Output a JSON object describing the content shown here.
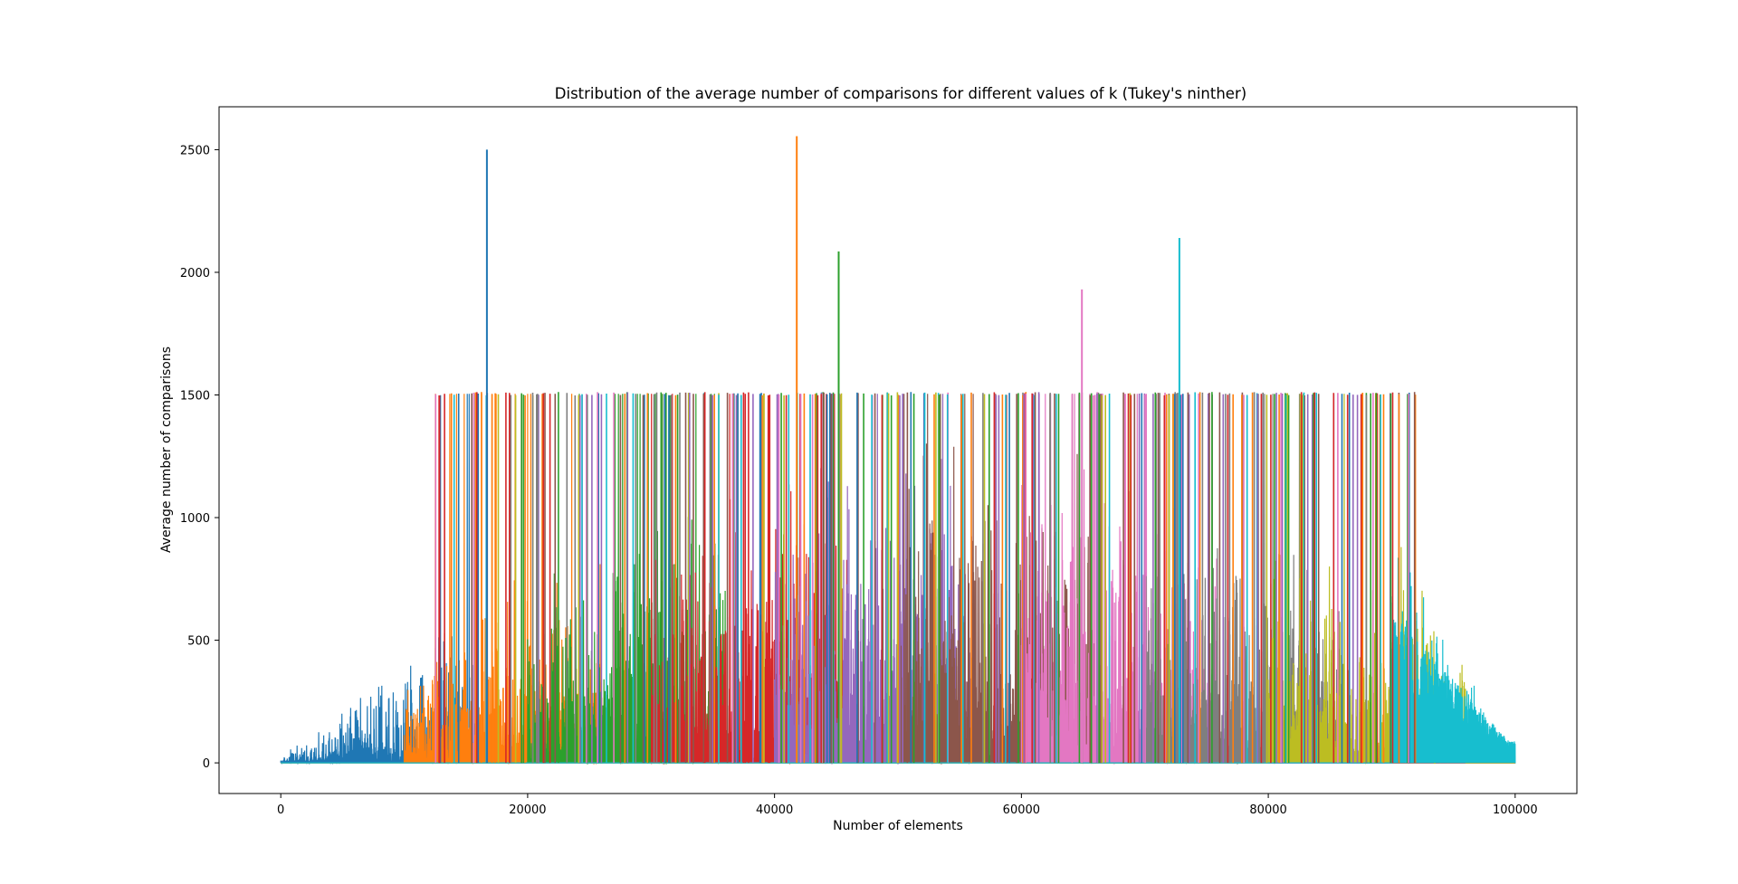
{
  "chart_data": {
    "type": "line",
    "title": "Distribution of the average number of comparisons for different values of k (Tukey's ninther)",
    "xlabel": "Number of elements",
    "ylabel": "Average number of comparisons",
    "xlim": [
      -5000,
      105000
    ],
    "ylim": [
      -125,
      2675
    ],
    "x_ticks": [
      0,
      20000,
      40000,
      60000,
      80000,
      100000
    ],
    "y_ticks": [
      0,
      500,
      1000,
      1500,
      2000,
      2500
    ],
    "grid": false,
    "legend": "none",
    "series_count": 10,
    "colors": [
      "#1f77b4",
      "#ff7f0e",
      "#2ca02c",
      "#d62728",
      "#9467bd",
      "#8c564b",
      "#e377c2",
      "#7f7f7f",
      "#bcbd22",
      "#17becf"
    ],
    "notable_peaks": [
      {
        "x": 16700,
        "y": 2500,
        "series": 1
      },
      {
        "x": 41800,
        "y": 2555,
        "series": 2
      },
      {
        "x": 45200,
        "y": 2085,
        "series": 3
      },
      {
        "x": 64900,
        "y": 1930,
        "series": 7
      },
      {
        "x": 72800,
        "y": 2140,
        "series": 10
      }
    ],
    "plateau_level": 1505,
    "plateau_range": [
      12500,
      92000
    ],
    "x_range": [
      0,
      100000
    ]
  }
}
